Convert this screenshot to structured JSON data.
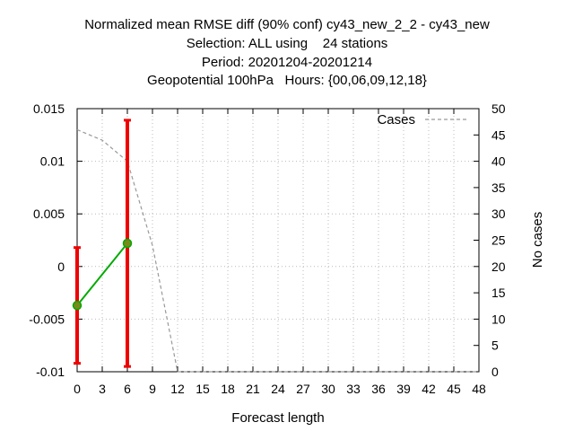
{
  "chart_data": {
    "type": "line",
    "title_lines": [
      "Normalized mean RMSE diff (90% conf) cy43_new_2_2 - cy43_new",
      "Selection: ALL using    24 stations",
      "Period: 20201204-20201214",
      "Geopotential 100hPa   Hours: {00,06,09,12,18}"
    ],
    "xlabel": "Forecast length",
    "ylabel": "",
    "y2label": "No cases",
    "xlim": [
      0,
      48
    ],
    "ylim": [
      -0.01,
      0.015
    ],
    "y2lim": [
      0,
      50
    ],
    "x_ticks": [
      0,
      3,
      6,
      9,
      12,
      15,
      18,
      21,
      24,
      27,
      30,
      33,
      36,
      39,
      42,
      45,
      48
    ],
    "y_ticks": [
      {
        "v": -0.01,
        "label": "-0.01"
      },
      {
        "v": -0.005,
        "label": "-0.005"
      },
      {
        "v": 0,
        "label": "0"
      },
      {
        "v": 0.005,
        "label": "0.005"
      },
      {
        "v": 0.01,
        "label": "0.01"
      },
      {
        "v": 0.015,
        "label": "0.015"
      }
    ],
    "y2_ticks": [
      0,
      5,
      10,
      15,
      20,
      25,
      30,
      35,
      40,
      45,
      50
    ],
    "grid": true,
    "legend_position": "top-right",
    "series": [
      {
        "kind": "diff",
        "color": "#00aa00",
        "errorbar_color": "#ee0000",
        "points": [
          {
            "x": 0,
            "y": -0.0037,
            "lo": -0.0092,
            "hi": 0.0018
          },
          {
            "x": 6,
            "y": 0.0022,
            "lo": -0.0095,
            "hi": 0.0139
          }
        ]
      },
      {
        "name": "Cases",
        "kind": "cases",
        "axis": "y2",
        "color": "#999999",
        "x": [
          0,
          3,
          6,
          9,
          12,
          15,
          18,
          21,
          24,
          27,
          30,
          33,
          36,
          39,
          42,
          45,
          48
        ],
        "values": [
          46,
          44,
          40,
          24,
          0,
          0,
          0,
          0,
          0,
          0,
          0,
          0,
          0,
          0,
          0,
          0,
          0
        ]
      }
    ]
  }
}
